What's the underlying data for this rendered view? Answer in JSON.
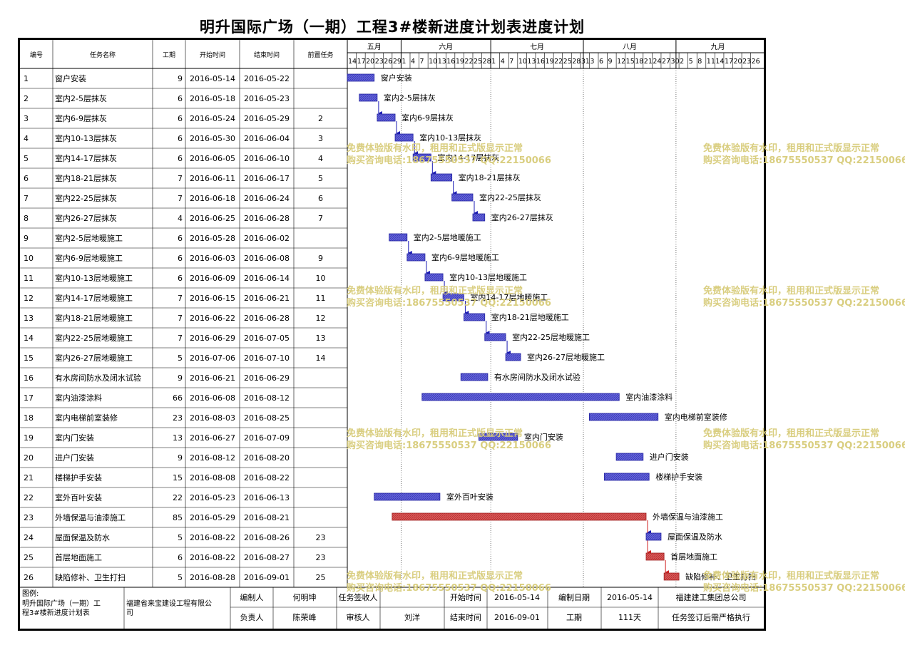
{
  "title": "明升国际广场（一期）工程3#楼新进度计划表进度计划",
  "headers": {
    "no": "编号",
    "name": "任务名称",
    "duration": "工期",
    "start": "开始时间",
    "end": "结束时间",
    "pred": "前置任务"
  },
  "months": [
    {
      "label": "五月",
      "start": "2016-05-14",
      "end": "2016-05-31"
    },
    {
      "label": "六月",
      "start": "2016-06-01",
      "end": "2016-06-30"
    },
    {
      "label": "七月",
      "start": "2016-07-01",
      "end": "2016-07-31"
    },
    {
      "label": "八月",
      "start": "2016-08-01",
      "end": "2016-08-31"
    },
    {
      "label": "九月",
      "start": "2016-09-01",
      "end": "2016-09-28"
    }
  ],
  "day_ticks": [
    "2016-05-14",
    "2016-05-17",
    "2016-05-20",
    "2016-05-23",
    "2016-05-26",
    "2016-05-29",
    "2016-06-01",
    "2016-06-04",
    "2016-06-07",
    "2016-06-10",
    "2016-06-13",
    "2016-06-16",
    "2016-06-19",
    "2016-06-22",
    "2016-06-25",
    "2016-06-28",
    "2016-07-01",
    "2016-07-04",
    "2016-07-07",
    "2016-07-10",
    "2016-07-13",
    "2016-07-16",
    "2016-07-19",
    "2016-07-22",
    "2016-07-25",
    "2016-07-28",
    "2016-07-31",
    "2016-08-03",
    "2016-08-06",
    "2016-08-09",
    "2016-08-12",
    "2016-08-15",
    "2016-08-18",
    "2016-08-21",
    "2016-08-24",
    "2016-08-27",
    "2016-08-30",
    "2016-09-02",
    "2016-09-05",
    "2016-09-08",
    "2016-09-11",
    "2016-09-14",
    "2016-09-17",
    "2016-09-20",
    "2016-09-23",
    "2016-09-26"
  ],
  "chart_data": {
    "type": "gantt",
    "x_range": [
      "2016-05-14",
      "2016-09-28"
    ],
    "tasks": [
      {
        "id": 1,
        "name": "窗户安装",
        "duration": 9,
        "start": "2016-05-14",
        "end": "2016-05-22",
        "pred": "",
        "critical": false
      },
      {
        "id": 2,
        "name": "室内2-5层抹灰",
        "duration": 6,
        "start": "2016-05-18",
        "end": "2016-05-23",
        "pred": "",
        "critical": false
      },
      {
        "id": 3,
        "name": "室内6-9层抹灰",
        "duration": 6,
        "start": "2016-05-24",
        "end": "2016-05-29",
        "pred": "2",
        "critical": false
      },
      {
        "id": 4,
        "name": "室内10-13层抹灰",
        "duration": 6,
        "start": "2016-05-30",
        "end": "2016-06-04",
        "pred": "3",
        "critical": false
      },
      {
        "id": 5,
        "name": "室内14-17层抹灰",
        "duration": 6,
        "start": "2016-06-05",
        "end": "2016-06-10",
        "pred": "4",
        "critical": false
      },
      {
        "id": 6,
        "name": "室内18-21层抹灰",
        "duration": 7,
        "start": "2016-06-11",
        "end": "2016-06-17",
        "pred": "5",
        "critical": false
      },
      {
        "id": 7,
        "name": "室内22-25层抹灰",
        "duration": 7,
        "start": "2016-06-18",
        "end": "2016-06-24",
        "pred": "6",
        "critical": false
      },
      {
        "id": 8,
        "name": "室内26-27层抹灰",
        "duration": 4,
        "start": "2016-06-25",
        "end": "2016-06-28",
        "pred": "7",
        "critical": false
      },
      {
        "id": 9,
        "name": "室内2-5层地暖施工",
        "duration": 6,
        "start": "2016-05-28",
        "end": "2016-06-02",
        "pred": "",
        "critical": false
      },
      {
        "id": 10,
        "name": "室内6-9层地暖施工",
        "duration": 6,
        "start": "2016-06-03",
        "end": "2016-06-08",
        "pred": "9",
        "critical": false
      },
      {
        "id": 11,
        "name": "室内10-13层地暖施工",
        "duration": 6,
        "start": "2016-06-09",
        "end": "2016-06-14",
        "pred": "10",
        "critical": false
      },
      {
        "id": 12,
        "name": "室内14-17层地暖施工",
        "duration": 7,
        "start": "2016-06-15",
        "end": "2016-06-21",
        "pred": "11",
        "critical": false
      },
      {
        "id": 13,
        "name": "室内18-21层地暖施工",
        "duration": 7,
        "start": "2016-06-22",
        "end": "2016-06-28",
        "pred": "12",
        "critical": false
      },
      {
        "id": 14,
        "name": "室内22-25层地暖施工",
        "duration": 7,
        "start": "2016-06-29",
        "end": "2016-07-05",
        "pred": "13",
        "critical": false
      },
      {
        "id": 15,
        "name": "室内26-27层地暖施工",
        "duration": 5,
        "start": "2016-07-06",
        "end": "2016-07-10",
        "pred": "14",
        "critical": false
      },
      {
        "id": 16,
        "name": "有水房间防水及闭水试验",
        "duration": 9,
        "start": "2016-06-21",
        "end": "2016-06-29",
        "pred": "",
        "critical": false
      },
      {
        "id": 17,
        "name": "室内油漆涂料",
        "duration": 66,
        "start": "2016-06-08",
        "end": "2016-08-12",
        "pred": "",
        "critical": false
      },
      {
        "id": 18,
        "name": "室内电梯前室装修",
        "duration": 23,
        "start": "2016-08-03",
        "end": "2016-08-25",
        "pred": "",
        "critical": false
      },
      {
        "id": 19,
        "name": "室内门安装",
        "duration": 13,
        "start": "2016-06-27",
        "end": "2016-07-09",
        "pred": "",
        "critical": false
      },
      {
        "id": 20,
        "name": "进户门安装",
        "duration": 9,
        "start": "2016-08-12",
        "end": "2016-08-20",
        "pred": "",
        "critical": false
      },
      {
        "id": 21,
        "name": "楼梯护手安装",
        "duration": 15,
        "start": "2016-08-08",
        "end": "2016-08-22",
        "pred": "",
        "critical": false
      },
      {
        "id": 22,
        "name": "室外百叶安装",
        "duration": 22,
        "start": "2016-05-23",
        "end": "2016-06-13",
        "pred": "",
        "critical": false
      },
      {
        "id": 23,
        "name": "外墙保温与油漆施工",
        "duration": 85,
        "start": "2016-05-29",
        "end": "2016-08-21",
        "pred": "",
        "critical": true
      },
      {
        "id": 24,
        "name": "屋面保温及防水",
        "duration": 5,
        "start": "2016-08-22",
        "end": "2016-08-26",
        "pred": "23",
        "critical": false
      },
      {
        "id": 25,
        "name": "首层地面施工",
        "duration": 6,
        "start": "2016-08-22",
        "end": "2016-08-27",
        "pred": "23",
        "critical": true
      },
      {
        "id": 26,
        "name": "缺陷修补、卫生打扫",
        "duration": 5,
        "start": "2016-08-28",
        "end": "2016-09-01",
        "pred": "25",
        "critical": true
      }
    ]
  },
  "footer": {
    "legend_label": "图例:",
    "project_name": "明升国际广场（一期）工程3#楼新进度计划表",
    "company": "福建省来宝建设工程有限公司",
    "compiler_label": "编制人",
    "compiler": "何明坤",
    "receiver_label": "任务签收人",
    "start_label": "开始时间",
    "start_value": "2016-05-14",
    "date_label": "编制日期",
    "date_value": "2016-05-14",
    "group": "福建建工集团总公司",
    "owner_label": "负责人",
    "owner": "陈荣峰",
    "reviewer_label": "审核人",
    "reviewer": "刘洋",
    "end_label": "结束时间",
    "end_value": "2016-09-01",
    "duration_label": "工期",
    "duration_value": "111天",
    "note": "任务签订后需严格执行"
  },
  "watermark": {
    "line1": "免费体验版有水印，租用和正式版显示正常",
    "line2": "购买咨询电话:18675550537 QQ:22150066"
  },
  "colors": {
    "bar_fill": "#5a5ad2",
    "bar_stroke": "#2222a0",
    "critical_fill": "#d85050",
    "critical_stroke": "#a02020",
    "dependency": "#1a1ab4",
    "critical_dependency": "#d02020",
    "watermark": "#d8cc7a"
  }
}
